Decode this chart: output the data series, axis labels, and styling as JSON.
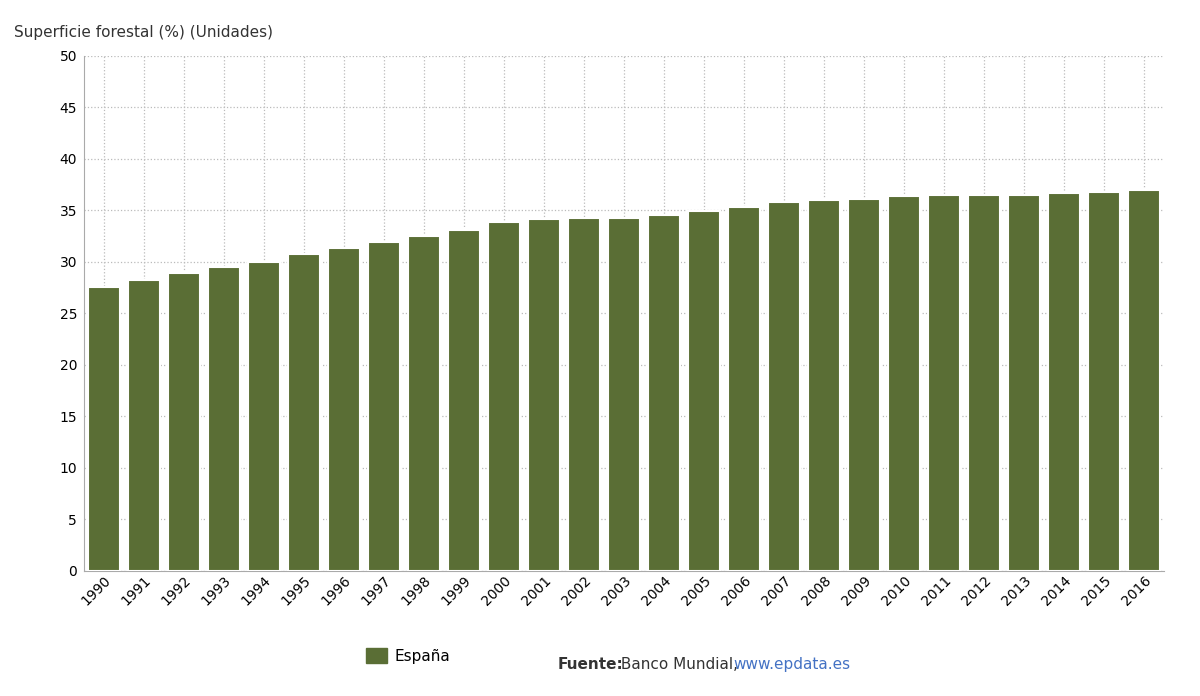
{
  "years": [
    1990,
    1991,
    1992,
    1993,
    1994,
    1995,
    1996,
    1997,
    1998,
    1999,
    2000,
    2001,
    2002,
    2003,
    2004,
    2005,
    2006,
    2007,
    2008,
    2009,
    2010,
    2011,
    2012,
    2013,
    2014,
    2015,
    2016
  ],
  "values": [
    27.5,
    28.2,
    28.9,
    29.5,
    30.0,
    30.7,
    31.3,
    31.9,
    32.5,
    33.1,
    33.9,
    34.1,
    34.2,
    34.2,
    34.5,
    34.9,
    35.3,
    35.8,
    36.0,
    36.1,
    36.4,
    36.5,
    36.5,
    36.5,
    36.7,
    36.8,
    37.0
  ],
  "bar_color": "#5a6e35",
  "ylabel": "Superficie forestal (%) (Unidades)",
  "ylim": [
    0,
    50
  ],
  "yticks": [
    0,
    5,
    10,
    15,
    20,
    25,
    30,
    35,
    40,
    45,
    50
  ],
  "background_color": "#ffffff",
  "plot_bg_color": "#ffffff",
  "grid_color": "#bbbbbb",
  "legend_label": "España",
  "source_label": "Fuente:",
  "source_text": " Banco Mundial, ",
  "source_url": "www.epdata.es",
  "source_url_color": "#4472c4",
  "axis_label_fontsize": 11,
  "tick_fontsize": 10,
  "bar_width": 0.82
}
